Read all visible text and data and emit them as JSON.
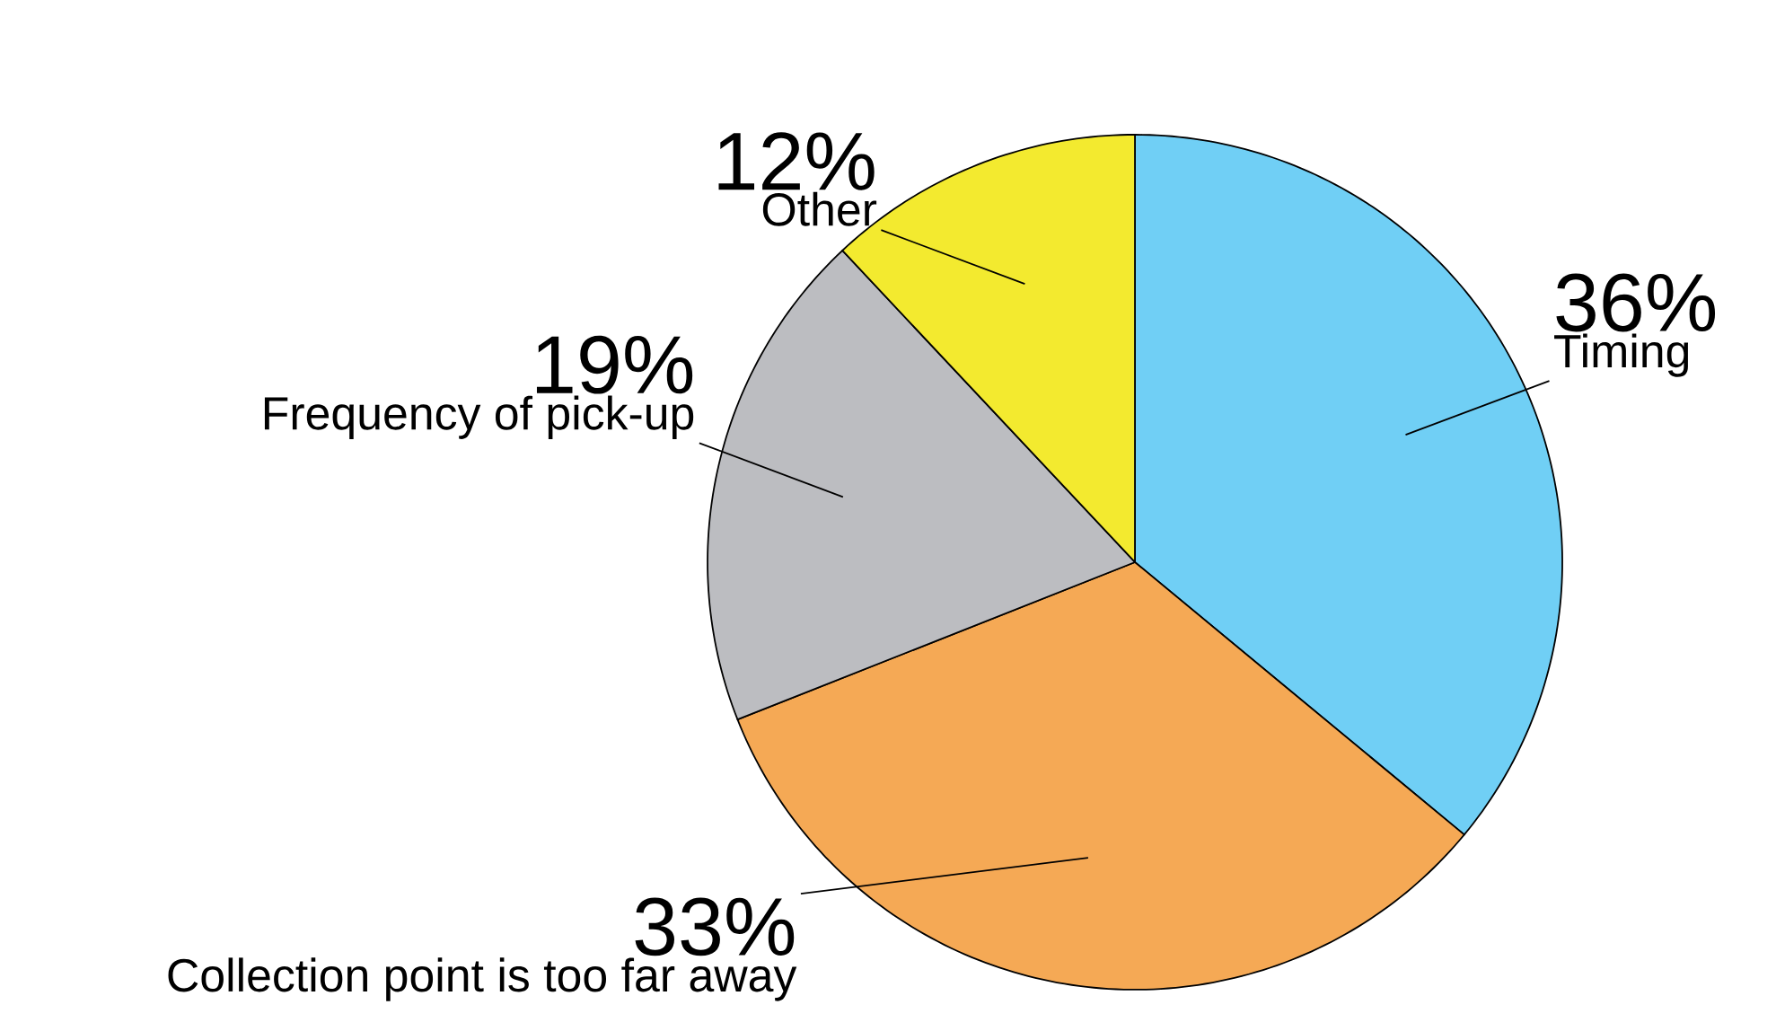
{
  "chart_data": {
    "type": "pie",
    "categories": [
      "Timing",
      "Collection point is too far away",
      "Frequency of pick-up",
      "Other"
    ],
    "values": [
      36,
      33,
      19,
      12
    ],
    "value_labels": [
      "36%",
      "33%",
      "19%",
      "12%"
    ],
    "colors": [
      "#70cff5",
      "#f5a955",
      "#bcbdc1",
      "#f3ea2f"
    ]
  }
}
